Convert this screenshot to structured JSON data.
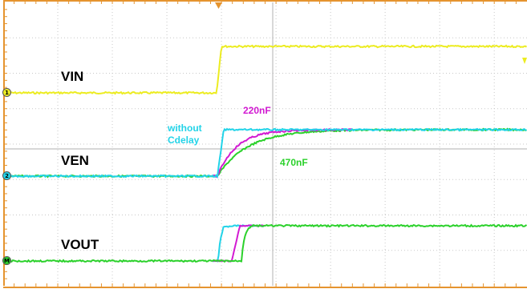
{
  "colors": {
    "frame": "#e5942f",
    "grid": "#c8c8c8",
    "vin": "#ecec21",
    "cyan": "#22d3e8",
    "magenta": "#d21ad2",
    "green": "#2bd12b"
  },
  "labels": {
    "vin": "VIN",
    "ven": "VEN",
    "vout": "VOUT",
    "without_line1": "without",
    "without_line2": "Cdelay",
    "c220": "220nF",
    "c470": "470nF"
  },
  "markers": {
    "ch1": "1",
    "ch2": "2",
    "ch4": "M"
  },
  "icons": {
    "trigger": "trigger-marker-icon",
    "vin_right": "vin-offscreen-arrow-icon"
  }
}
